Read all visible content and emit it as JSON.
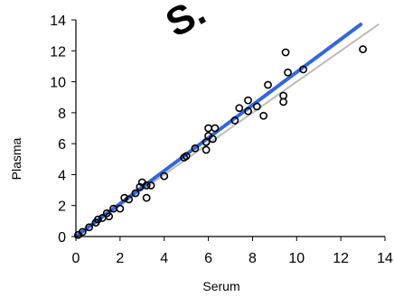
{
  "chart_data": {
    "type": "scatter",
    "title": "",
    "xlabel": "Serum",
    "ylabel": "Plasma",
    "xlim": [
      0,
      14
    ],
    "ylim": [
      0,
      14
    ],
    "x_ticks": [
      "0",
      "2",
      "4",
      "6",
      "8",
      "10",
      "12",
      "14"
    ],
    "y_ticks": [
      "0",
      "2",
      "4",
      "6",
      "8",
      "10",
      "12",
      "14"
    ],
    "grid": false,
    "legend": "none",
    "watermark_text": "S.",
    "watermark_color": "#ff0000",
    "points": [
      [
        0.1,
        0.1
      ],
      [
        0.3,
        0.3
      ],
      [
        0.6,
        0.6
      ],
      [
        0.9,
        0.9
      ],
      [
        1.0,
        1.1
      ],
      [
        1.2,
        1.2
      ],
      [
        1.4,
        1.5
      ],
      [
        1.5,
        1.3
      ],
      [
        1.7,
        1.8
      ],
      [
        2.0,
        1.8
      ],
      [
        2.2,
        2.5
      ],
      [
        2.4,
        2.4
      ],
      [
        2.7,
        2.8
      ],
      [
        2.9,
        3.2
      ],
      [
        3.0,
        3.5
      ],
      [
        3.2,
        3.3
      ],
      [
        3.2,
        2.5
      ],
      [
        3.4,
        3.3
      ],
      [
        4.0,
        3.9
      ],
      [
        4.9,
        5.1
      ],
      [
        5.0,
        5.2
      ],
      [
        5.4,
        5.7
      ],
      [
        5.9,
        6.1
      ],
      [
        5.9,
        5.6
      ],
      [
        6.0,
        6.5
      ],
      [
        6.0,
        7.0
      ],
      [
        6.2,
        6.3
      ],
      [
        6.3,
        7.0
      ],
      [
        7.2,
        7.5
      ],
      [
        7.4,
        8.3
      ],
      [
        7.8,
        8.1
      ],
      [
        7.8,
        8.8
      ],
      [
        8.2,
        8.4
      ],
      [
        8.5,
        7.8
      ],
      [
        8.7,
        9.8
      ],
      [
        9.4,
        8.7
      ],
      [
        9.4,
        9.1
      ],
      [
        9.5,
        11.9
      ],
      [
        9.6,
        10.6
      ],
      [
        10.3,
        10.8
      ],
      [
        13.0,
        12.1
      ]
    ],
    "series": [
      {
        "type": "scatter",
        "marker": "open-circle",
        "color": "#000000"
      },
      {
        "type": "line",
        "role": "fit",
        "color": "#3366dd",
        "x": [
          0,
          12.9
        ],
        "y": [
          0,
          13.7
        ]
      },
      {
        "type": "line",
        "role": "identity",
        "color": "#bbbbbb",
        "x": [
          0,
          13.7
        ],
        "y": [
          0,
          13.7
        ]
      }
    ]
  }
}
